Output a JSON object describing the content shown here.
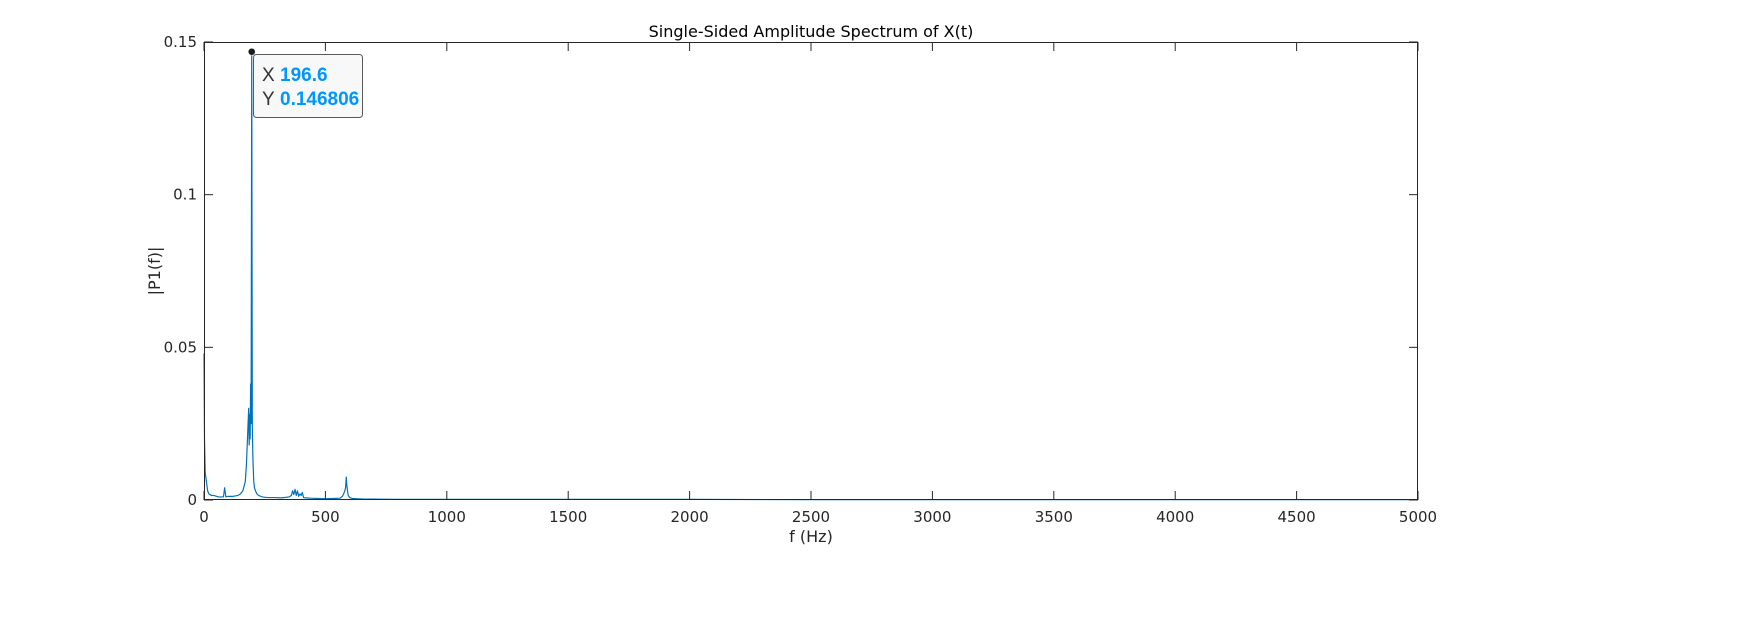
{
  "chart_data": {
    "type": "line",
    "title": "Single-Sided Amplitude Spectrum of X(t)",
    "xlabel": "f (Hz)",
    "ylabel": "|P1(f)|",
    "xlim": [
      0,
      5000
    ],
    "ylim": [
      0,
      0.15
    ],
    "x_ticks": [
      0,
      500,
      1000,
      1500,
      2000,
      2500,
      3000,
      3500,
      4000,
      4500,
      5000
    ],
    "x_tick_labels": [
      "0",
      "500",
      "1000",
      "1500",
      "2000",
      "2500",
      "3000",
      "3500",
      "4000",
      "4500",
      "5000"
    ],
    "y_ticks": [
      0,
      0.05,
      0.1,
      0.15
    ],
    "y_tick_labels": [
      "0",
      "0.05",
      "0.1",
      "0.15"
    ],
    "grid": false,
    "line_color": "#0072BD",
    "series": [
      {
        "x": [
          0,
          2,
          5,
          10,
          15,
          20,
          30,
          40,
          60,
          80,
          85,
          90,
          100,
          120,
          140,
          150,
          160,
          170,
          175,
          180,
          184,
          186,
          188,
          190,
          192,
          194,
          196.6,
          199,
          201,
          203,
          205,
          208,
          212,
          218,
          225,
          240,
          260,
          290,
          320,
          350,
          360,
          365,
          370,
          375,
          380,
          385,
          390,
          395,
          400,
          405,
          410,
          420,
          440,
          470,
          500,
          530,
          560,
          570,
          575,
          580,
          583,
          586,
          588,
          591,
          594,
          600,
          610,
          630,
          660,
          700,
          800,
          1000,
          1500,
          2000,
          2500,
          3000,
          3500,
          4000,
          4500,
          5000
        ],
        "y": [
          0.048,
          0.02,
          0.009,
          0.006,
          0.003,
          0.002,
          0.0015,
          0.0015,
          0.001,
          0.001,
          0.004,
          0.001,
          0.0012,
          0.0012,
          0.0015,
          0.002,
          0.003,
          0.006,
          0.012,
          0.022,
          0.03,
          0.018,
          0.028,
          0.02,
          0.038,
          0.025,
          0.146806,
          0.024,
          0.015,
          0.01,
          0.006,
          0.004,
          0.003,
          0.002,
          0.0015,
          0.001,
          0.0008,
          0.0008,
          0.0007,
          0.001,
          0.0015,
          0.003,
          0.0018,
          0.0035,
          0.0015,
          0.003,
          0.0012,
          0.002,
          0.0015,
          0.0025,
          0.0008,
          0.0007,
          0.0006,
          0.0005,
          0.0004,
          0.0005,
          0.0006,
          0.0012,
          0.002,
          0.003,
          0.004,
          0.0075,
          0.005,
          0.003,
          0.0015,
          0.0008,
          0.0005,
          0.0004,
          0.0003,
          0.0003,
          0.0002,
          0.0002,
          0.0002,
          0.0002,
          0.0001,
          0.0001,
          0.0001,
          0.0001,
          0.0001,
          0.0001
        ]
      }
    ],
    "datatip": {
      "x": 196.6,
      "y": 0.146806,
      "x_key": "X",
      "y_key": "Y",
      "x_text": "196.6",
      "y_text": "0.146806",
      "value_color": "#0096FF"
    }
  }
}
